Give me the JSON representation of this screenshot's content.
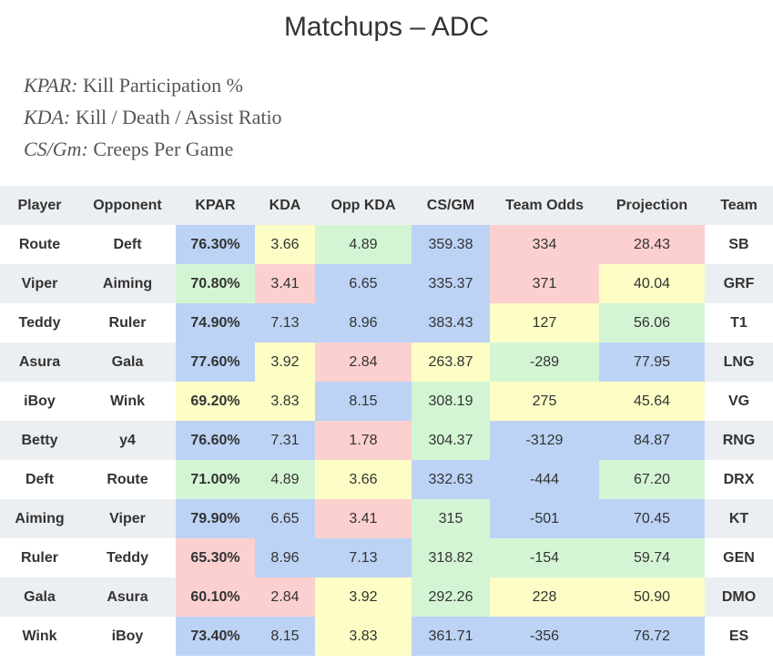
{
  "title": "Matchups – ADC",
  "legend": [
    {
      "term": "KPAR:",
      "desc": " Kill Participation %"
    },
    {
      "term": "KDA:",
      "desc": " Kill / Death / Assist Ratio"
    },
    {
      "term": "CS/Gm:",
      "desc": " Creeps Per Game"
    }
  ],
  "columns": [
    "Player",
    "Opponent",
    "KPAR",
    "KDA",
    "Opp KDA",
    "CS/GM",
    "Team Odds",
    "Projection",
    "Team"
  ],
  "colors": {
    "blue": "#bcd3f5",
    "green": "#d4f5d4",
    "yellow": "#fdfdc6",
    "red": "#fdd0d0",
    "stripe": "#eceff2"
  },
  "rows": [
    {
      "player": "Route",
      "opponent": "Deft",
      "kpar": "76.30%",
      "kda": "3.66",
      "opp_kda": "4.89",
      "cs_gm": "359.38",
      "team_odds": "334",
      "projection": "28.43",
      "team": "SB",
      "shade": {
        "kpar": "blue",
        "kda": "yellow",
        "opp_kda": "green",
        "cs_gm": "blue",
        "team_odds": "red",
        "projection": "red"
      }
    },
    {
      "player": "Viper",
      "opponent": "Aiming",
      "kpar": "70.80%",
      "kda": "3.41",
      "opp_kda": "6.65",
      "cs_gm": "335.37",
      "team_odds": "371",
      "projection": "40.04",
      "team": "GRF",
      "shade": {
        "kpar": "green",
        "kda": "red",
        "opp_kda": "blue",
        "cs_gm": "blue",
        "team_odds": "red",
        "projection": "yellow"
      }
    },
    {
      "player": "Teddy",
      "opponent": "Ruler",
      "kpar": "74.90%",
      "kda": "7.13",
      "opp_kda": "8.96",
      "cs_gm": "383.43",
      "team_odds": "127",
      "projection": "56.06",
      "team": "T1",
      "shade": {
        "kpar": "blue",
        "kda": "blue",
        "opp_kda": "blue",
        "cs_gm": "blue",
        "team_odds": "yellow",
        "projection": "green"
      }
    },
    {
      "player": "Asura",
      "opponent": "Gala",
      "kpar": "77.60%",
      "kda": "3.92",
      "opp_kda": "2.84",
      "cs_gm": "263.87",
      "team_odds": "-289",
      "projection": "77.95",
      "team": "LNG",
      "shade": {
        "kpar": "blue",
        "kda": "yellow",
        "opp_kda": "red",
        "cs_gm": "yellow",
        "team_odds": "green",
        "projection": "blue"
      }
    },
    {
      "player": "iBoy",
      "opponent": "Wink",
      "kpar": "69.20%",
      "kda": "3.83",
      "opp_kda": "8.15",
      "cs_gm": "308.19",
      "team_odds": "275",
      "projection": "45.64",
      "team": "VG",
      "shade": {
        "kpar": "yellow",
        "kda": "yellow",
        "opp_kda": "blue",
        "cs_gm": "green",
        "team_odds": "yellow",
        "projection": "yellow"
      }
    },
    {
      "player": "Betty",
      "opponent": "y4",
      "kpar": "76.60%",
      "kda": "7.31",
      "opp_kda": "1.78",
      "cs_gm": "304.37",
      "team_odds": "-3129",
      "projection": "84.87",
      "team": "RNG",
      "shade": {
        "kpar": "blue",
        "kda": "blue",
        "opp_kda": "red",
        "cs_gm": "green",
        "team_odds": "blue",
        "projection": "blue"
      }
    },
    {
      "player": "Deft",
      "opponent": "Route",
      "kpar": "71.00%",
      "kda": "4.89",
      "opp_kda": "3.66",
      "cs_gm": "332.63",
      "team_odds": "-444",
      "projection": "67.20",
      "team": "DRX",
      "shade": {
        "kpar": "green",
        "kda": "green",
        "opp_kda": "yellow",
        "cs_gm": "blue",
        "team_odds": "blue",
        "projection": "green"
      }
    },
    {
      "player": "Aiming",
      "opponent": "Viper",
      "kpar": "79.90%",
      "kda": "6.65",
      "opp_kda": "3.41",
      "cs_gm": "315",
      "team_odds": "-501",
      "projection": "70.45",
      "team": "KT",
      "shade": {
        "kpar": "blue",
        "kda": "blue",
        "opp_kda": "red",
        "cs_gm": "green",
        "team_odds": "blue",
        "projection": "blue"
      }
    },
    {
      "player": "Ruler",
      "opponent": "Teddy",
      "kpar": "65.30%",
      "kda": "8.96",
      "opp_kda": "7.13",
      "cs_gm": "318.82",
      "team_odds": "-154",
      "projection": "59.74",
      "team": "GEN",
      "shade": {
        "kpar": "red",
        "kda": "blue",
        "opp_kda": "blue",
        "cs_gm": "green",
        "team_odds": "green",
        "projection": "green"
      }
    },
    {
      "player": "Gala",
      "opponent": "Asura",
      "kpar": "60.10%",
      "kda": "2.84",
      "opp_kda": "3.92",
      "cs_gm": "292.26",
      "team_odds": "228",
      "projection": "50.90",
      "team": "DMO",
      "shade": {
        "kpar": "red",
        "kda": "red",
        "opp_kda": "yellow",
        "cs_gm": "green",
        "team_odds": "yellow",
        "projection": "yellow"
      }
    },
    {
      "player": "Wink",
      "opponent": "iBoy",
      "kpar": "73.40%",
      "kda": "8.15",
      "opp_kda": "3.83",
      "cs_gm": "361.71",
      "team_odds": "-356",
      "projection": "76.72",
      "team": "ES",
      "shade": {
        "kpar": "blue",
        "kda": "blue",
        "opp_kda": "yellow",
        "cs_gm": "blue",
        "team_odds": "blue",
        "projection": "blue"
      }
    }
  ]
}
